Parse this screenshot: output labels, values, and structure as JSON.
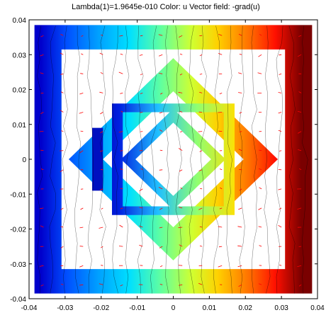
{
  "chart_data": {
    "type": "heatmap",
    "title": "Lambda(1)=1.9645e-010   Color: u  Vector field: -grad(u)",
    "xlabel": "",
    "ylabel": "",
    "xlim": [
      -0.04,
      0.04
    ],
    "ylim": [
      -0.04,
      0.04
    ],
    "x_ticks": [
      "-0.04",
      "-0.03",
      "-0.02",
      "-0.01",
      "0",
      "0.01",
      "0.02",
      "0.03",
      "0.04"
    ],
    "y_ticks": [
      "0.04",
      "0.03",
      "0.02",
      "0.01",
      "0",
      "-0.01",
      "-0.02",
      "-0.03",
      "-0.04"
    ],
    "colormap": "jet",
    "color_variable": "u",
    "vector_field": "-grad(u)",
    "vector_color": "#ff0000",
    "contour_color": "#000000",
    "grid": false,
    "domain": {
      "outer_square": [
        [
          -0.0385,
          -0.0385
        ],
        [
          0.0385,
          0.0385
        ]
      ],
      "frame_hole": [
        [
          -0.031,
          -0.0315
        ],
        [
          0.031,
          0.0315
        ]
      ],
      "middle_diamond_radius": 0.029,
      "middle_diamond_hole_radius": 0.0195,
      "inner_square": [
        [
          -0.017,
          -0.016
        ],
        [
          0.017,
          0.016
        ]
      ],
      "inner_square_hole": [
        [
          -0.014,
          -0.0135
        ],
        [
          0.014,
          0.0135
        ]
      ],
      "center_diamond_radius": 0.0145,
      "center_diamond_hole_radius": 0.0105
    },
    "u_range_description": "low (blue) on left, high (dark red) on right"
  }
}
